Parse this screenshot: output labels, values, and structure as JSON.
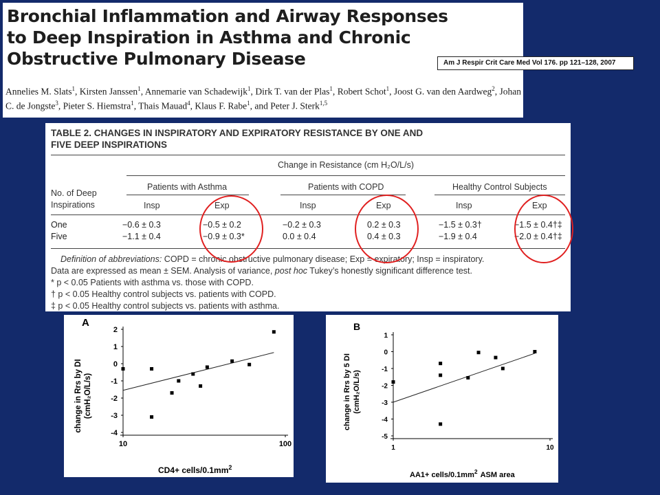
{
  "paper": {
    "title_line1": "Bronchial Inflammation and Airway Responses",
    "title_line2": "to Deep Inspiration in Asthma and Chronic",
    "title_line3": "Obstructive Pulmonary Disease",
    "citation": "Am J Respir Crit Care Med   Vol 176. pp 121–128, 2007",
    "authors": [
      {
        "name": "Annelies M. Slats",
        "aff": "1"
      },
      {
        "name": "Kirsten Janssen",
        "aff": "1"
      },
      {
        "name": "Annemarie van Schadewijk",
        "aff": "1"
      },
      {
        "name": "Dirk T. van der Plas",
        "aff": "1"
      },
      {
        "name": "Robert Schot",
        "aff": "1"
      },
      {
        "name": "Joost G. van den Aardweg",
        "aff": "2"
      },
      {
        "name": "Johan C. de Jongste",
        "aff": "3"
      },
      {
        "name": "Pieter S. Hiemstra",
        "aff": "1"
      },
      {
        "name": "Thais Mauad",
        "aff": "4"
      },
      {
        "name": "Klaus F. Rabe",
        "aff": "1"
      },
      {
        "name": "Peter J. Sterk",
        "aff": "1,5"
      }
    ],
    "authors_conj": "and"
  },
  "table": {
    "title_line1": "TABLE 2. CHANGES IN INSPIRATORY AND EXPIRATORY RESISTANCE BY ONE AND",
    "title_line2": "FIVE DEEP INSPIRATIONS",
    "spanner": "Change in Resistance (cm H₂O/L/s)",
    "row_header_line1": "No. of Deep",
    "row_header_line2": "Inspirations",
    "groups": [
      "Patients with Asthma",
      "Patients with COPD",
      "Healthy Control Subjects"
    ],
    "subheaders": [
      "Insp",
      "Exp",
      "Insp",
      "Exp",
      "Insp",
      "Exp"
    ],
    "rows": [
      {
        "label": "One",
        "cells": [
          "−0.6 ± 0.3",
          "−0.5 ± 0.2",
          "−0.2 ± 0.3",
          "0.2 ± 0.3",
          "−1.5 ± 0.3†",
          "−1.5 ± 0.4†‡"
        ]
      },
      {
        "label": "Five",
        "cells": [
          "−1.1 ± 0.4",
          "−0.9 ± 0.3*",
          "0.0 ± 0.4",
          "0.4 ± 0.3",
          "−1.9 ± 0.4",
          "−2.0 ± 0.4†‡"
        ]
      }
    ],
    "footnotes": [
      "Definition of abbreviations: COPD = chronic obstructive pulmonary disease; Exp = expiratory; Insp = inspiratory.",
      "Data are expressed as mean ± SEM. Analysis of variance, post hoc Tukey’s honestly significant difference test.",
      "* p < 0.05 Patients with asthma vs. those with COPD.",
      "† p < 0.05 Healthy control subjects vs. patients with COPD.",
      "‡ p < 0.05 Healthy control subjects vs. patients with asthma."
    ]
  },
  "highlight_color": "#e02020",
  "chart_data": [
    {
      "type": "scatter",
      "panel_label": "A",
      "xlabel": "CD4+ cells/0.1mm",
      "xlabel_sup": "2",
      "ylabel_line1": "change in Rrs by DI",
      "ylabel_line2": "(cmH₂O/L/s)",
      "x_scale": "log",
      "xlim": [
        10,
        100
      ],
      "ylim": [
        -4,
        2
      ],
      "x_ticks": [
        10,
        100
      ],
      "y_ticks": [
        2,
        1,
        0,
        -1,
        -2,
        -3,
        -4
      ],
      "points": [
        {
          "x": 10,
          "y": -0.3
        },
        {
          "x": 15,
          "y": -0.3
        },
        {
          "x": 15,
          "y": -3.1
        },
        {
          "x": 20,
          "y": -1.7
        },
        {
          "x": 22,
          "y": -1.0
        },
        {
          "x": 27,
          "y": -0.6
        },
        {
          "x": 30,
          "y": -1.3
        },
        {
          "x": 33,
          "y": -0.2
        },
        {
          "x": 47,
          "y": 0.15
        },
        {
          "x": 60,
          "y": -0.05
        },
        {
          "x": 85,
          "y": 1.85
        }
      ],
      "trendline": [
        {
          "x": 10,
          "y": -1.55
        },
        {
          "x": 85,
          "y": 0.65
        }
      ]
    },
    {
      "type": "scatter",
      "panel_label": "B",
      "xlabel": "AA1+ cells/0.1mm",
      "xlabel_sup": "2",
      "xlabel_suffix": "ASM area",
      "ylabel_line1": "change in Rrs by 5 DI",
      "ylabel_line2": "(cmH₂O/L/s)",
      "x_scale": "log",
      "xlim": [
        1,
        10
      ],
      "ylim": [
        -5,
        1
      ],
      "x_ticks": [
        1,
        10
      ],
      "y_ticks": [
        1,
        0,
        -1,
        -2,
        -3,
        -4,
        -5
      ],
      "points": [
        {
          "x": 1.0,
          "y": -1.8
        },
        {
          "x": 2.0,
          "y": -0.7
        },
        {
          "x": 2.0,
          "y": -1.4
        },
        {
          "x": 2.0,
          "y": -4.3
        },
        {
          "x": 3.0,
          "y": -1.55
        },
        {
          "x": 3.5,
          "y": -0.05
        },
        {
          "x": 4.5,
          "y": -0.35
        },
        {
          "x": 5.0,
          "y": -1.0
        },
        {
          "x": 8.0,
          "y": 0.0
        }
      ],
      "trendline": [
        {
          "x": 1.0,
          "y": -3.0
        },
        {
          "x": 8.0,
          "y": -0.1
        }
      ]
    }
  ]
}
